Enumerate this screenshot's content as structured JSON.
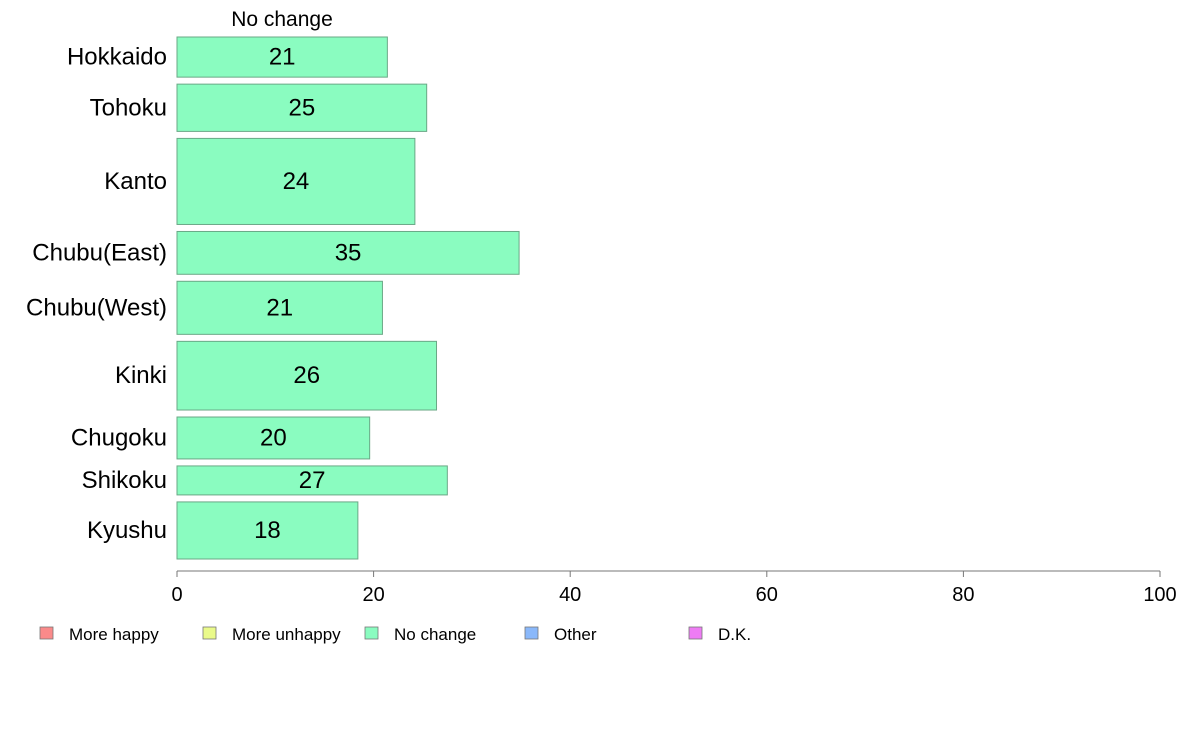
{
  "chart_data": {
    "type": "bar",
    "orientation": "horizontal",
    "series_title": "No change",
    "categories": [
      "Hokkaido",
      "Tohoku",
      "Kanto",
      "Chubu(East)",
      "Chubu(West)",
      "Kinki",
      "Chugoku",
      "Shikoku",
      "Kyushu"
    ],
    "category_weights": [
      0.9,
      1.06,
      1.93,
      0.96,
      1.19,
      1.54,
      0.94,
      0.65,
      1.28
    ],
    "series": [
      {
        "name": "No change",
        "values": [
          21.4,
          25.4,
          24.2,
          34.8,
          20.9,
          26.4,
          19.6,
          27.5,
          18.4
        ],
        "labels": [
          "21",
          "25",
          "24",
          "35",
          "21",
          "26",
          "20",
          "27",
          "18"
        ]
      }
    ],
    "xlim": [
      0,
      100
    ],
    "xticks": [
      "0",
      "20",
      "40",
      "60",
      "80",
      "100"
    ],
    "grid": false,
    "legend_position": "bottom",
    "legend": [
      {
        "label": "More happy",
        "color": "#fa8a8a"
      },
      {
        "label": "More unhappy",
        "color": "#eafa8a"
      },
      {
        "label": "No change",
        "color": "#8afcc0"
      },
      {
        "label": "Other",
        "color": "#8ab8fa"
      },
      {
        "label": "D.K.",
        "color": "#ee7cf4"
      }
    ],
    "bar_color": "#8afcc0",
    "bar_border_color": "#6aa886"
  }
}
